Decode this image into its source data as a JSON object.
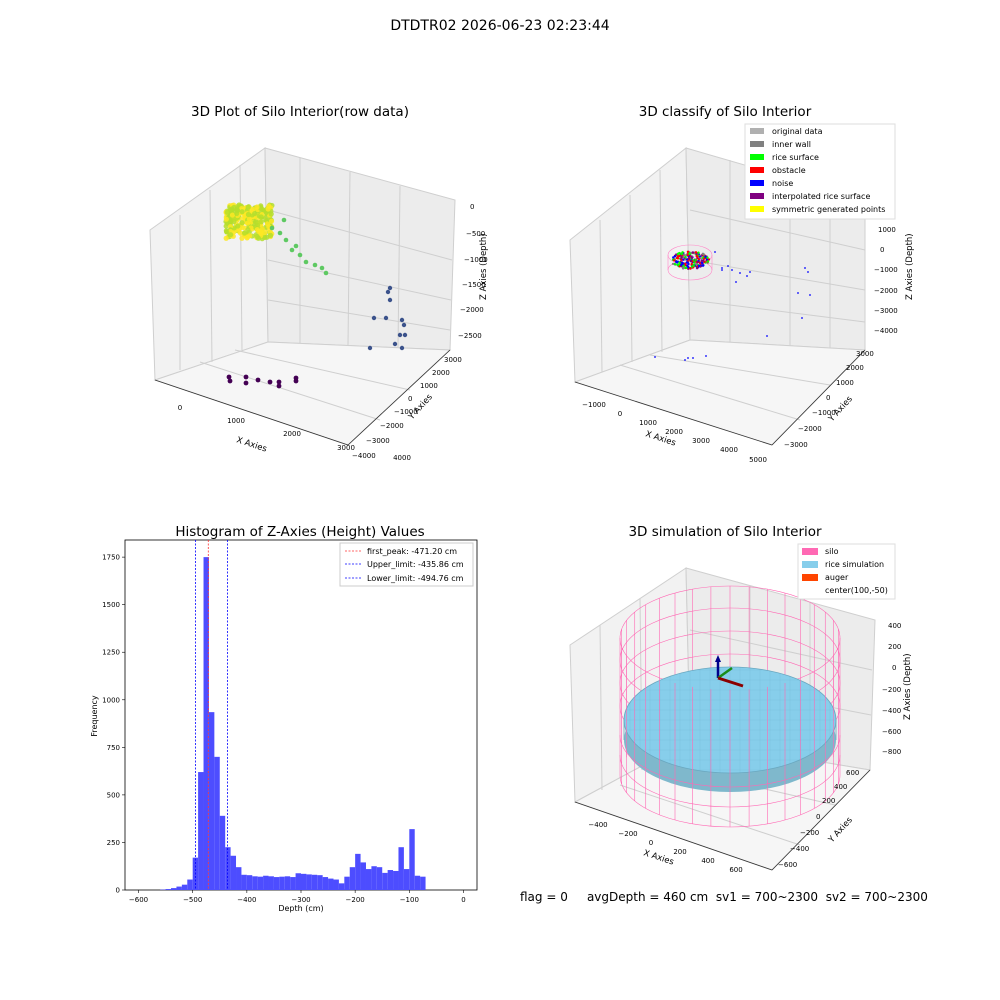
{
  "figure": {
    "suptitle": "DTDTR02 2026-06-23 02:23:44",
    "footer": {
      "flag": "flag = 0",
      "avg": "avgDepth = 460 cm",
      "sv1": "sv1 = 700~2300",
      "sv2": "sv2 = 700~2300"
    }
  },
  "chart_data": [
    {
      "type": "scatter",
      "title": "3D Plot of Silo Interior(row data)",
      "xlabel": "X Axies",
      "ylabel": "Y Axies",
      "zlabel": "Z Axies (Depth)",
      "xticks": [
        "0",
        "1000",
        "2000",
        "3000",
        "4000"
      ],
      "yticks": [
        "−4000",
        "−3000",
        "−2000",
        "−1000",
        "0",
        "1000",
        "2000",
        "3000"
      ],
      "zticks": [
        "0",
        "−500",
        "−1000",
        "−1500",
        "−2000",
        "−2500"
      ],
      "colormap": [
        "#440154",
        "#3b528b",
        "#21918c",
        "#5ec962",
        "#fde725"
      ]
    },
    {
      "type": "scatter",
      "title": "3D classify of Silo Interior",
      "xlabel": "X Axies",
      "ylabel": "Y Axies",
      "zlabel": "Z Axies (Depth)",
      "xticks": [
        "−1000",
        "0",
        "1000",
        "2000",
        "3000",
        "4000",
        "5000"
      ],
      "yticks": [
        "−3000",
        "−2000",
        "−1000",
        "0",
        "1000",
        "2000",
        "3000"
      ],
      "zticks": [
        "2000",
        "1000",
        "0",
        "−1000",
        "−2000",
        "−3000",
        "−4000"
      ],
      "legend": [
        {
          "label": "original data",
          "color": "#b0b0b0"
        },
        {
          "label": "inner wall",
          "color": "#808080"
        },
        {
          "label": "rice surface",
          "color": "#00ff00"
        },
        {
          "label": "obstacle",
          "color": "#ff0000"
        },
        {
          "label": "noise",
          "color": "#0000ff"
        },
        {
          "label": "interpolated rice surface",
          "color": "#800080"
        },
        {
          "label": "symmetric generated points",
          "color": "#ffff00"
        }
      ],
      "legend_placement": "top-right"
    },
    {
      "type": "bar",
      "title": "Histogram of Z-Axies (Height) Values",
      "xlabel": "Depth (cm)",
      "ylabel": "Frequency",
      "xlim": [
        -625,
        25
      ],
      "ylim": [
        0,
        1840
      ],
      "xticks": [
        -600,
        -500,
        -400,
        -300,
        -200,
        -100,
        0
      ],
      "yticks": [
        0,
        250,
        500,
        750,
        1000,
        1250,
        1500,
        1750
      ],
      "bar_color": "#4d4dff",
      "bin_width": 10,
      "bins": [
        [
          -560,
          2
        ],
        [
          -550,
          5
        ],
        [
          -540,
          10
        ],
        [
          -530,
          18
        ],
        [
          -520,
          28
        ],
        [
          -510,
          55
        ],
        [
          -500,
          170
        ],
        [
          -490,
          620
        ],
        [
          -480,
          1750
        ],
        [
          -470,
          935
        ],
        [
          -460,
          700
        ],
        [
          -450,
          390
        ],
        [
          -440,
          225
        ],
        [
          -430,
          180
        ],
        [
          -420,
          120
        ],
        [
          -410,
          80
        ],
        [
          -400,
          78
        ],
        [
          -390,
          72
        ],
        [
          -380,
          70
        ],
        [
          -370,
          75
        ],
        [
          -360,
          72
        ],
        [
          -350,
          68
        ],
        [
          -340,
          70
        ],
        [
          -330,
          72
        ],
        [
          -320,
          68
        ],
        [
          -310,
          88
        ],
        [
          -300,
          85
        ],
        [
          -290,
          82
        ],
        [
          -280,
          80
        ],
        [
          -270,
          78
        ],
        [
          -260,
          68
        ],
        [
          -250,
          60
        ],
        [
          -240,
          55
        ],
        [
          -230,
          35
        ],
        [
          -220,
          70
        ],
        [
          -210,
          120
        ],
        [
          -200,
          190
        ],
        [
          -190,
          145
        ],
        [
          -180,
          110
        ],
        [
          -170,
          125
        ],
        [
          -160,
          120
        ],
        [
          -150,
          90
        ],
        [
          -140,
          105
        ],
        [
          -130,
          100
        ],
        [
          -120,
          225
        ],
        [
          -110,
          110
        ],
        [
          -100,
          320
        ],
        [
          -90,
          75
        ],
        [
          -80,
          70
        ]
      ],
      "vlines": [
        {
          "x": -471.2,
          "color": "#ff3333",
          "label": "first_peak: -471.20 cm"
        },
        {
          "x": -435.86,
          "color": "#0000ff",
          "label": "Upper_limit: -435.86 cm"
        },
        {
          "x": -494.76,
          "color": "#0000ff",
          "label": "Lower_limit: -494.76 cm"
        }
      ],
      "legend_placement": "top-right"
    },
    {
      "type": "scatter",
      "title": "3D simulation of Silo Interior",
      "xlabel": "X Axies",
      "ylabel": "Y Axies",
      "zlabel": "Z Axies (Depth)",
      "xticks": [
        "−400",
        "−200",
        "0",
        "200",
        "400",
        "600"
      ],
      "yticks": [
        "−600",
        "−400",
        "−200",
        "0",
        "200",
        "400",
        "600"
      ],
      "zticks": [
        "400",
        "200",
        "0",
        "−200",
        "−400",
        "−600",
        "−800"
      ],
      "legend": [
        {
          "label": "silo",
          "color": "#ff69b4"
        },
        {
          "label": "rice simulation",
          "color": "#87ceeb"
        },
        {
          "label": "auger",
          "color": "#ff4500"
        },
        {
          "label": "center(100,-50)",
          "color": ""
        }
      ],
      "legend_placement": "top-right"
    }
  ]
}
